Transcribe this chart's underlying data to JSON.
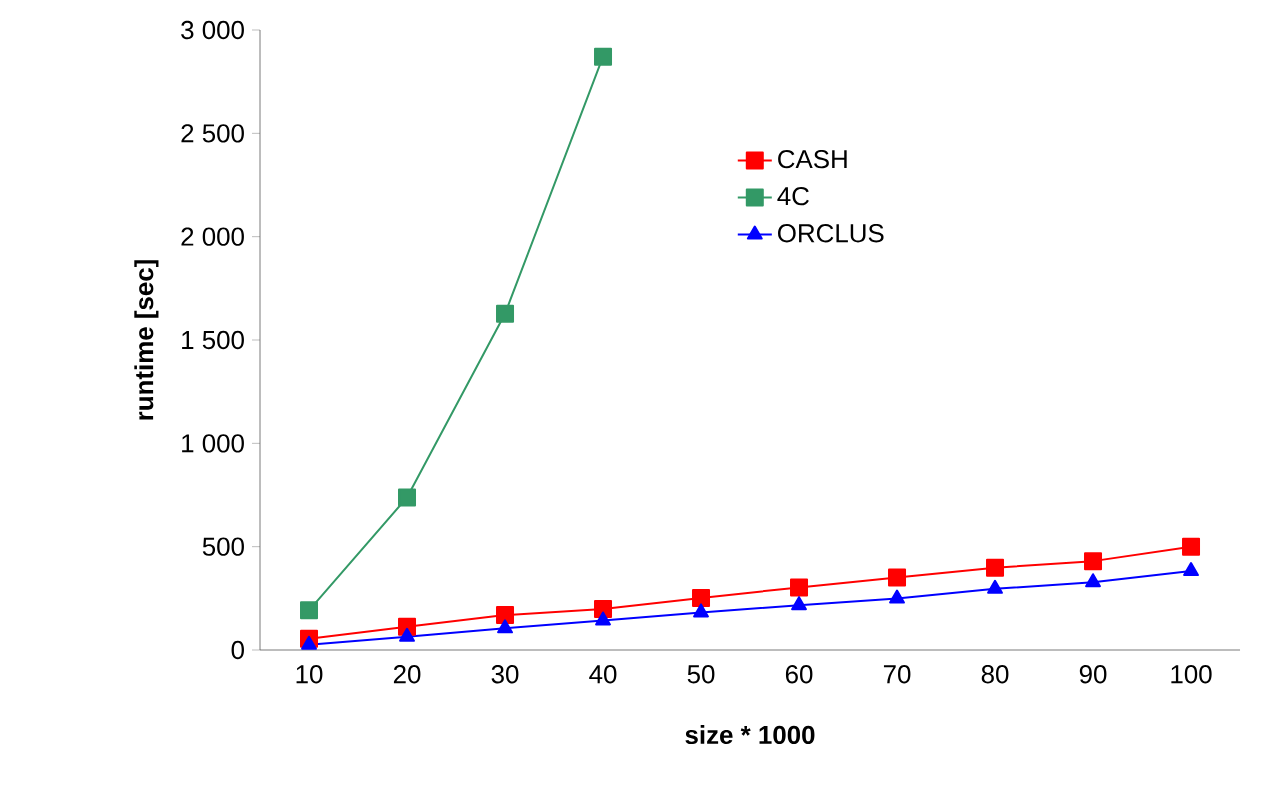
{
  "chart_data": {
    "type": "line",
    "xlabel": "size * 1000",
    "ylabel": "runtime [sec]",
    "categories": [
      "10",
      "20",
      "30",
      "40",
      "50",
      "60",
      "70",
      "80",
      "90",
      "100"
    ],
    "series": [
      {
        "name": "CASH",
        "color": "#ff0000",
        "marker": "square",
        "values": [
          54,
          112,
          169,
          198,
          252,
          303,
          351,
          398,
          430,
          500
        ]
      },
      {
        "name": "4C",
        "color": "#339966",
        "marker": "square",
        "values": [
          192,
          738,
          1627,
          2871,
          null,
          null,
          null,
          null,
          null,
          null
        ]
      },
      {
        "name": "ORCLUS",
        "color": "#0000ff",
        "marker": "triangle",
        "values": [
          25,
          64,
          105,
          143,
          182,
          217,
          249,
          296,
          328,
          382
        ]
      }
    ],
    "ylim": [
      0,
      3000
    ],
    "yticks": [
      0,
      500,
      {
        "value": 1000,
        "label": "1 000"
      },
      {
        "value": 1500,
        "label": "1 500"
      },
      {
        "value": 2000,
        "label": "2 000"
      },
      {
        "value": 2500,
        "label": "2 500"
      },
      {
        "value": 3000,
        "label": "3 000"
      }
    ],
    "grid": false,
    "legend": "top right"
  }
}
